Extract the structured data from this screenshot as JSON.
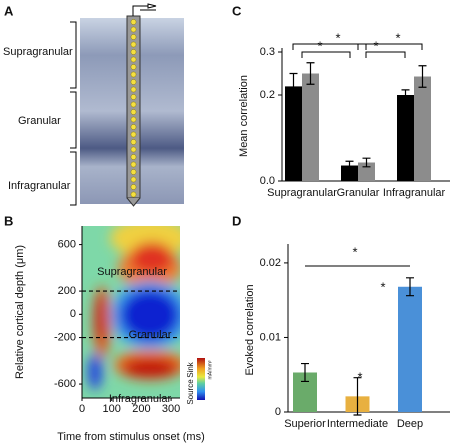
{
  "panel_labels": [
    "A",
    "B",
    "C",
    "D"
  ],
  "panel_a": {
    "layers": [
      "Supragranular",
      "Granular",
      "Infragranular"
    ]
  },
  "chart_data": [
    {
      "type": "heatmap",
      "xlabel": "Time from stimulus onset (ms)",
      "ylabel": "Relative cortical depth (μm)",
      "xlim": [
        0,
        330
      ],
      "xticks": [
        0,
        100,
        200,
        300
      ],
      "ylim": [
        -720,
        760
      ],
      "yticks": [
        600,
        200,
        0,
        -200,
        -600
      ],
      "boundaries": [
        200,
        -200
      ],
      "region_labels": [
        "Supragranular",
        "Granular",
        "Infragranular"
      ],
      "colorbar_labels": [
        "Sink",
        "Source"
      ],
      "colorbar_unit": "mA/mm³"
    },
    {
      "type": "bar",
      "ylabel": "Mean correlation",
      "categories": [
        "Supragranular",
        "Granular",
        "Infragranular"
      ],
      "series": [
        {
          "color": "#000000",
          "values": [
            0.22,
            0.036,
            0.2
          ],
          "errors": [
            0.03,
            0.01,
            0.012
          ]
        },
        {
          "color": "#8c8c8c",
          "values": [
            0.25,
            0.043,
            0.243
          ],
          "errors": [
            0.025,
            0.01,
            0.025
          ]
        }
      ],
      "ylim": [
        0,
        0.3
      ],
      "yticks": [
        {
          "value": 0,
          "label": "0.0"
        },
        0.2,
        0.3
      ],
      "annotations": [
        "*",
        "*",
        "*",
        "*"
      ]
    },
    {
      "type": "bar",
      "ylabel": "Evoked correlation",
      "categories": [
        "Superior",
        "Intermediate",
        "Deep"
      ],
      "values": [
        0.0053,
        0.0021,
        0.0168
      ],
      "errors": [
        0.0012,
        0.0025,
        0.0012
      ],
      "colors": [
        "#6aab6a",
        "#e8b040",
        "#4a90d8"
      ],
      "ylim": [
        0,
        0.022
      ],
      "yticks": [
        0,
        0.01,
        0.02
      ],
      "annotations": [
        "*",
        "*",
        "*"
      ]
    }
  ]
}
